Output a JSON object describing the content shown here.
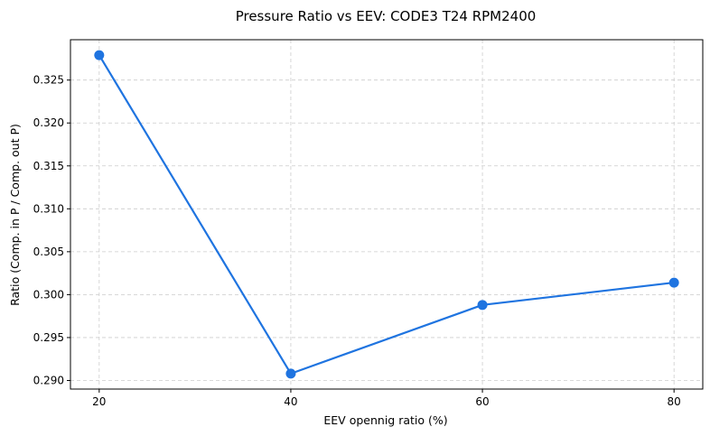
{
  "chart_data": {
    "type": "line",
    "title": "Pressure Ratio vs EEV: CODE3 T24 RPM2400",
    "xlabel": "EEV opennig ratio (%)",
    "ylabel": "Ratio (Comp. in P / Comp. out P)",
    "x": [
      20,
      40,
      60,
      80
    ],
    "series": [
      {
        "name": "Pressure Ratio",
        "values": [
          0.3279,
          0.2908,
          0.2988,
          0.3014
        ],
        "color": "#1f74e0",
        "marker": "circle"
      }
    ],
    "xticks": [
      20,
      40,
      60,
      80
    ],
    "xtick_labels": [
      "20",
      "40",
      "60",
      "80"
    ],
    "yticks": [
      0.29,
      0.295,
      0.3,
      0.305,
      0.31,
      0.315,
      0.32,
      0.325
    ],
    "ytick_labels": [
      "0.290",
      "0.295",
      "0.300",
      "0.305",
      "0.310",
      "0.315",
      "0.320",
      "0.325"
    ],
    "xlim": [
      17,
      83
    ],
    "ylim": [
      0.289,
      0.3297
    ],
    "grid": true,
    "grid_color": "#cccccc",
    "axis_color": "#000000",
    "legend": "none"
  }
}
